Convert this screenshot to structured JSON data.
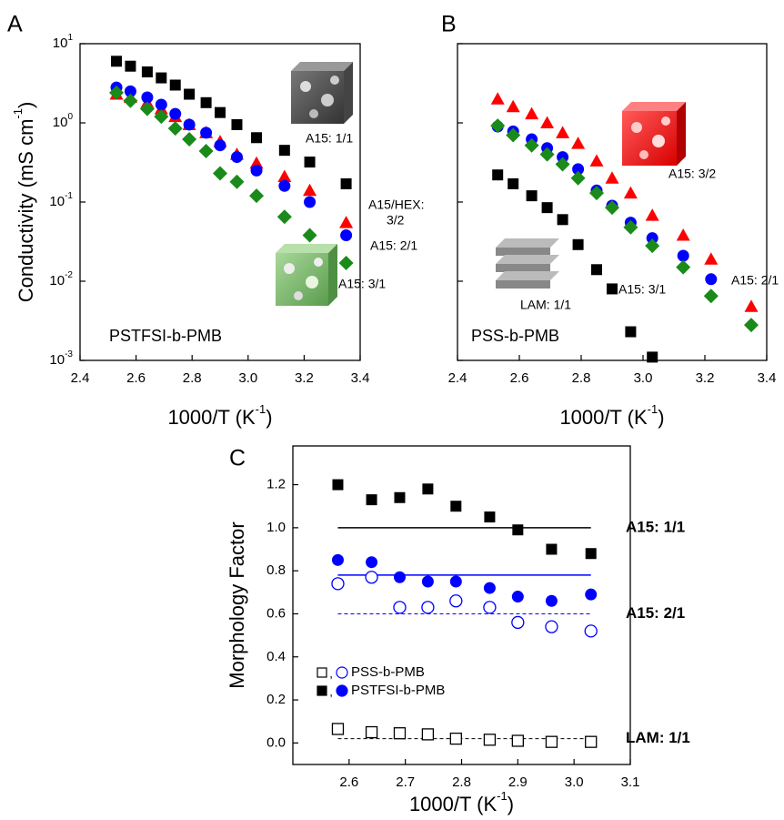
{
  "panels": [
    "A",
    "B",
    "C"
  ],
  "chart_data": [
    {
      "type": "scatter",
      "log_y": true,
      "xlabel": "1000/T (K",
      "xlabel_sup": "-1",
      "xlabel_end": ")",
      "ylabel": "Conductivity (mS cm",
      "ylabel_sup": "-1",
      "ylabel_end": ")",
      "xlim": [
        2.4,
        3.4
      ],
      "xticks": [
        2.4,
        2.6,
        2.8,
        {
          "value": 3.0,
          "label": "3.0"
        },
        3.2,
        3.4
      ],
      "ylim": [
        0.001,
        10
      ],
      "yticks": [
        {
          "value": 10,
          "label": "10",
          "sup": "1"
        },
        {
          "value": 1,
          "label": "10",
          "sup": "0"
        },
        {
          "value": 0.1,
          "label": "10",
          "sup": "-1"
        },
        {
          "value": 0.01,
          "label": "10",
          "sup": "-2"
        },
        {
          "value": 0.001,
          "label": "10",
          "sup": "-3"
        }
      ],
      "x": [
        2.53,
        2.58,
        2.64,
        2.69,
        2.74,
        2.79,
        2.85,
        2.9,
        2.96,
        3.03,
        3.13,
        3.22,
        3.35
      ],
      "series": [
        {
          "marker": "square",
          "color": "#000000",
          "values": [
            6,
            5.2,
            4.4,
            3.7,
            3.0,
            2.3,
            1.8,
            1.35,
            0.95,
            0.65,
            0.45,
            0.32,
            0.17
          ]
        },
        {
          "marker": "triangle",
          "color": "#ff0000",
          "values": [
            2.3,
            2.1,
            1.8,
            1.5,
            1.2,
            0.95,
            0.75,
            0.58,
            0.4,
            0.31,
            0.21,
            0.14,
            0.055
          ]
        },
        {
          "marker": "circle",
          "color": "#0000ff",
          "values": [
            2.8,
            2.5,
            2.1,
            1.7,
            1.3,
            0.95,
            0.75,
            0.52,
            0.37,
            0.25,
            0.16,
            0.1,
            0.038
          ]
        },
        {
          "marker": "diamond",
          "color": "#1a8a1a",
          "values": [
            2.4,
            1.9,
            1.5,
            1.2,
            0.85,
            0.62,
            0.44,
            0.23,
            0.18,
            0.12,
            0.065,
            0.038,
            0.017
          ]
        }
      ],
      "annotations": [
        {
          "text": "A15: 1/1",
          "color": "#000000"
        },
        {
          "text": "A15/HEX:",
          "color": "#ff0000"
        },
        {
          "text": "3/2",
          "color": "#ff0000"
        },
        {
          "text": "A15: 2/1",
          "color": "#0000ff"
        },
        {
          "text": "A15: 3/1",
          "color": "#1a8a1a"
        },
        {
          "text": "PSTFSI-b-PMB",
          "color": "#ff0000"
        }
      ]
    },
    {
      "type": "scatter",
      "log_y": true,
      "xlabel": "1000/T (K",
      "xlabel_sup": "-1",
      "xlabel_end": ")",
      "xlim": [
        2.4,
        3.4
      ],
      "xticks": [
        2.4,
        2.6,
        2.8,
        {
          "value": 3.0,
          "label": "3.0"
        },
        3.2,
        3.4
      ],
      "ylim": [
        0.001,
        10
      ],
      "x": [
        2.53,
        2.58,
        2.64,
        2.69,
        2.74,
        2.79,
        2.85,
        2.9,
        2.96,
        3.03,
        3.13,
        3.22,
        3.35
      ],
      "series": [
        {
          "marker": "triangle",
          "color": "#ff0000",
          "values": [
            2.0,
            1.6,
            1.3,
            1.0,
            0.75,
            0.55,
            0.33,
            0.2,
            0.13,
            0.068,
            0.038,
            0.019,
            0.0048
          ]
        },
        {
          "marker": "circle",
          "color": "#0000ff",
          "values": [
            0.9,
            0.78,
            0.62,
            0.48,
            0.37,
            0.26,
            0.14,
            0.09,
            0.055,
            0.035,
            0.021,
            0.0106,
            null
          ]
        },
        {
          "marker": "diamond",
          "color": "#1a8a1a",
          "values": [
            0.92,
            0.7,
            0.52,
            0.4,
            0.3,
            0.2,
            0.13,
            0.085,
            0.048,
            0.028,
            0.015,
            0.0065,
            0.0028
          ]
        },
        {
          "marker": "square",
          "color": "#000000",
          "values": [
            0.22,
            0.17,
            0.12,
            0.085,
            0.06,
            0.029,
            0.014,
            0.008,
            0.0023,
            0.0011,
            null,
            null,
            null
          ]
        }
      ],
      "annotations": [
        {
          "text": "A15: 3/2",
          "color": "#ff0000"
        },
        {
          "text": "A15: 2/1",
          "color": "#0000ff"
        },
        {
          "text": "A15: 3/1",
          "color": "#1a8a1a"
        },
        {
          "text": "LAM: 1/1",
          "color": "#000000"
        },
        {
          "text": "PSS-b-PMB",
          "color": "#000000"
        }
      ]
    },
    {
      "type": "scatter",
      "log_y": false,
      "xlabel": "1000/T (K",
      "xlabel_sup": "-1",
      "xlabel_end": ")",
      "ylabel": "Morphology Factor",
      "xlim": [
        2.5,
        3.1
      ],
      "xticks": [
        2.6,
        2.7,
        2.8,
        2.9,
        {
          "value": 3.0,
          "label": "3.0"
        },
        3.1
      ],
      "ylim": [
        -0.1,
        1.38
      ],
      "yticks": [
        {
          "value": 0,
          "label": "0.0"
        },
        0.2,
        0.4,
        0.6,
        0.8,
        {
          "value": 1.0,
          "label": "1.0"
        },
        1.2
      ],
      "x": [
        2.58,
        2.64,
        2.69,
        2.74,
        2.79,
        2.85,
        2.9,
        2.96,
        3.03
      ],
      "groups": [
        {
          "name": "PSS-b-PMB",
          "series": [
            {
              "marker": "square",
              "filled": false,
              "color": "#000000",
              "values": [
                0.065,
                0.05,
                0.045,
                0.04,
                0.02,
                0.015,
                0.01,
                0.005,
                0.005
              ]
            },
            {
              "marker": "circle",
              "filled": false,
              "color": "#0000ff",
              "values": [
                0.74,
                0.77,
                0.63,
                0.63,
                0.66,
                0.63,
                0.56,
                0.54,
                0.52
              ]
            }
          ]
        },
        {
          "name": "PSTFSI-b-PMB",
          "series": [
            {
              "marker": "square",
              "filled": true,
              "color": "#000000",
              "values": [
                1.2,
                1.13,
                1.14,
                1.18,
                1.1,
                1.05,
                0.99,
                0.9,
                0.88
              ]
            },
            {
              "marker": "circle",
              "filled": true,
              "color": "#0000ff",
              "values": [
                0.85,
                0.84,
                0.77,
                0.75,
                0.75,
                0.72,
                0.68,
                0.66,
                0.69
              ]
            }
          ]
        }
      ],
      "reference_lines": [
        {
          "value": 1.0,
          "color": "#000000",
          "dashed": false,
          "label": "A15: 1/1"
        },
        {
          "value": 0.78,
          "color": "#0000ff",
          "dashed": false
        },
        {
          "value": 0.6,
          "color": "#0000ff",
          "dashed": true,
          "label": "A15: 2/1"
        },
        {
          "value": 0.02,
          "color": "#000000",
          "dashed": true,
          "label": "LAM: 1/1"
        }
      ]
    }
  ]
}
